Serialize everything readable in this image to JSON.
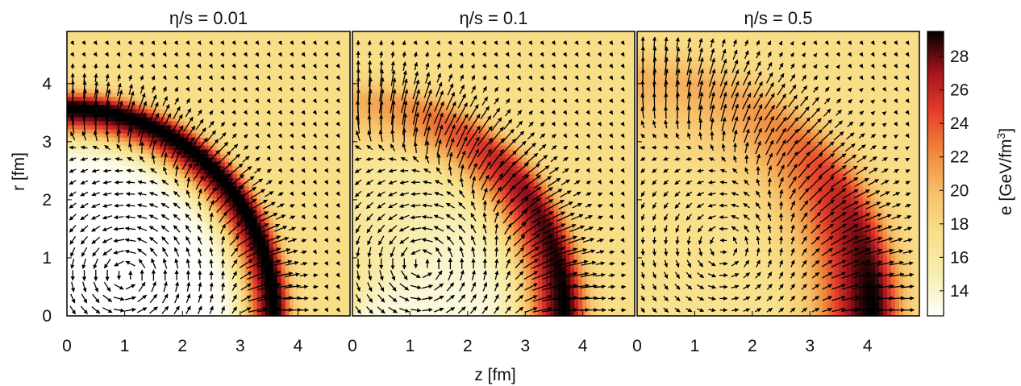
{
  "chart_data": {
    "type": "heatmap",
    "xlabel": "z [fm]",
    "ylabel": "r [fm]",
    "colorbar_label": "e [GeV/fm",
    "colorbar_label_sup": "3",
    "colorbar_label_end": "]",
    "xlim": [
      0,
      4.9
    ],
    "ylim": [
      0,
      4.9
    ],
    "x_ticks": [
      "0",
      "1",
      "2",
      "3",
      "4"
    ],
    "y_ticks": [
      "0",
      "1",
      "2",
      "3",
      "4"
    ],
    "colorbar_range": [
      12.5,
      29.5
    ],
    "colorbar_ticks": [
      "14",
      "16",
      "18",
      "20",
      "22",
      "24",
      "26",
      "28"
    ],
    "colormap": [
      "#ffffff",
      "#f7eeb0",
      "#f9e08a",
      "#f6c26a",
      "#f08a3e",
      "#e6402a",
      "#a4141c",
      "#000000"
    ],
    "background_value": 17.5,
    "panels": [
      {
        "title": "η/s = 0.01",
        "eta_over_s": 0.01,
        "shock_radius": 3.6,
        "shock_width": 0.22,
        "shock_peak": 30,
        "vortex_center": [
          1.0,
          0.7
        ],
        "interior_value": 12.5
      },
      {
        "title": "η/s = 0.1",
        "eta_over_s": 0.1,
        "shock_radius": 3.7,
        "shock_width": 0.3,
        "shock_peak": 29.5,
        "vortex_center": [
          1.2,
          0.9
        ],
        "interior_value": 13.5
      },
      {
        "title": "η/s = 0.5",
        "eta_over_s": 0.5,
        "shock_radius": 4.1,
        "shock_width": 0.4,
        "shock_peak": 29.5,
        "vortex_center": [
          1.5,
          1.2
        ],
        "interior_value": 17.0
      }
    ]
  }
}
